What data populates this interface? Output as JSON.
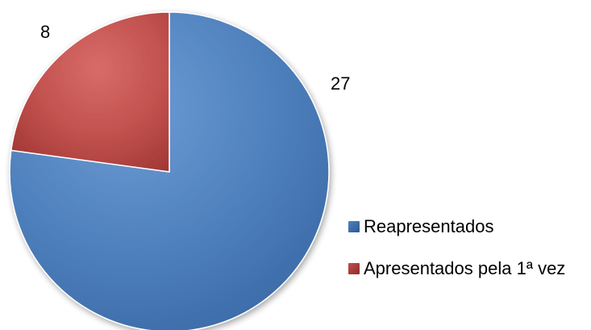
{
  "chart_data": {
    "type": "pie",
    "title": "",
    "slices": [
      {
        "label": "Reapresentados",
        "value": 27,
        "color": "#4F81BD",
        "edge_color": "#2C5A93"
      },
      {
        "label": "Apresentados pela 1ª vez",
        "value": 8,
        "color": "#C0504D",
        "edge_color": "#8E2B28"
      }
    ],
    "legend_placement": "right-bottom",
    "data_labels_shown": true
  }
}
